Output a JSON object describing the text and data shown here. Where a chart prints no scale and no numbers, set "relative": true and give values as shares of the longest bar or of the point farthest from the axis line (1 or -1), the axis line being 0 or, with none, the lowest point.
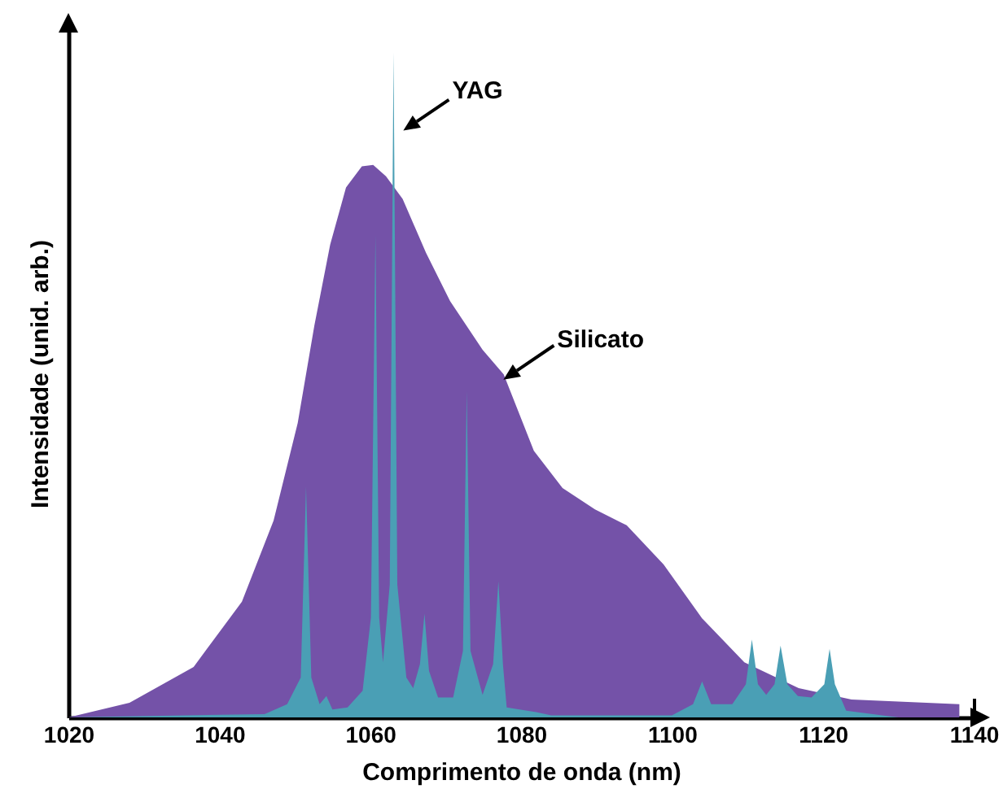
{
  "chart_data": {
    "type": "area",
    "xlabel": "Comprimento de onda (nm)",
    "ylabel": "Intensidade (unid. arb.)",
    "relative": true,
    "tick_labels": "x",
    "xlim": [
      1020,
      1140
    ],
    "xticks": [
      1020,
      1040,
      1060,
      1080,
      1100,
      1120,
      1140
    ],
    "series": [
      {
        "name": "Silicato",
        "color": "#7452a8",
        "x": [
          1020,
          1028.1,
          1036.6,
          1043,
          1047.2,
          1050.4,
          1052.6,
          1054.7,
          1056.8,
          1058.9,
          1060.4,
          1062.1,
          1064.3,
          1067.4,
          1070.6,
          1074.9,
          1077.7,
          1081.7,
          1085.5,
          1089.8,
          1094,
          1098.9,
          1104,
          1109.6,
          1116.8,
          1123.8,
          1138.1
        ],
        "values": [
          0,
          0.022,
          0.076,
          0.174,
          0.296,
          0.443,
          0.589,
          0.711,
          0.797,
          0.829,
          0.831,
          0.814,
          0.78,
          0.699,
          0.626,
          0.553,
          0.516,
          0.401,
          0.345,
          0.313,
          0.289,
          0.23,
          0.149,
          0.083,
          0.044,
          0.027,
          0.02
        ]
      },
      {
        "name": "YAG",
        "color": "#4a9fb5",
        "x": [
          1020,
          1046,
          1049,
          1050.8,
          1051.5,
          1052.2,
          1053.3,
          1054.2,
          1055,
          1057,
          1059,
          1060.1,
          1060.7,
          1061.2,
          1061.7,
          1062.6,
          1063.1,
          1063.6,
          1064.8,
          1065.7,
          1066.6,
          1067.2,
          1067.8,
          1069,
          1071,
          1072.3,
          1072.8,
          1073.3,
          1074.9,
          1076.3,
          1077,
          1077.6,
          1078.1,
          1082,
          1084,
          1100,
          1102.8,
          1104,
          1105.2,
          1108,
          1109.8,
          1110.6,
          1111.4,
          1112.5,
          1113.6,
          1114.4,
          1115.3,
          1116.7,
          1118.5,
          1120.2,
          1120.9,
          1121.6,
          1123.1,
          1130
        ],
        "values": [
          0,
          0.005,
          0.02,
          0.06,
          0.347,
          0.06,
          0.02,
          0.032,
          0.012,
          0.015,
          0.04,
          0.15,
          0.726,
          0.15,
          0.083,
          0.2,
          1,
          0.2,
          0.06,
          0.044,
          0.08,
          0.156,
          0.07,
          0.03,
          0.03,
          0.1,
          0.491,
          0.1,
          0.034,
          0.08,
          0.205,
          0.08,
          0.015,
          0.008,
          0.003,
          0.003,
          0.02,
          0.054,
          0.02,
          0.02,
          0.05,
          0.117,
          0.05,
          0.034,
          0.05,
          0.108,
          0.05,
          0.032,
          0.03,
          0.05,
          0.103,
          0.05,
          0.01,
          0
        ]
      }
    ]
  }
}
